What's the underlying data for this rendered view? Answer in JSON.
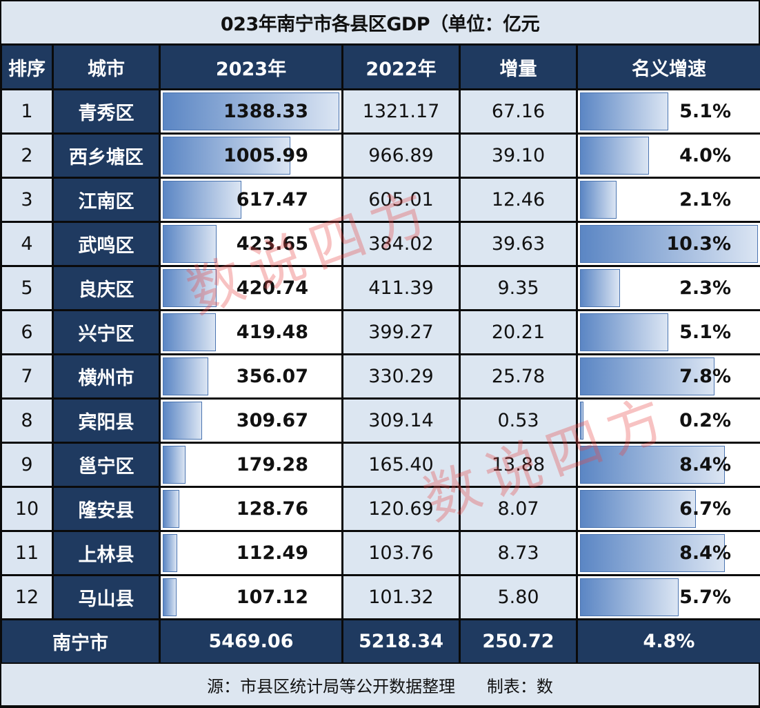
{
  "title": "023年南宁市各县区GDP（单位：亿元",
  "columns": [
    "排序",
    "城市",
    "2023年",
    "2022年",
    "增量",
    "名义增速"
  ],
  "rows": [
    {
      "rank": "1",
      "city": "青秀区",
      "gdp2023": "1388.33",
      "gdp2022": "1321.17",
      "increase": "67.16",
      "growth": "5.1%"
    },
    {
      "rank": "2",
      "city": "西乡塘区",
      "gdp2023": "1005.99",
      "gdp2022": "966.89",
      "increase": "39.10",
      "growth": "4.0%"
    },
    {
      "rank": "3",
      "city": "江南区",
      "gdp2023": "617.47",
      "gdp2022": "605.01",
      "increase": "12.46",
      "growth": "2.1%"
    },
    {
      "rank": "4",
      "city": "武鸣区",
      "gdp2023": "423.65",
      "gdp2022": "384.02",
      "increase": "39.63",
      "growth": "10.3%"
    },
    {
      "rank": "5",
      "city": "良庆区",
      "gdp2023": "420.74",
      "gdp2022": "411.39",
      "increase": "9.35",
      "growth": "2.3%"
    },
    {
      "rank": "6",
      "city": "兴宁区",
      "gdp2023": "419.48",
      "gdp2022": "399.27",
      "increase": "20.21",
      "growth": "5.1%"
    },
    {
      "rank": "7",
      "city": "横州市",
      "gdp2023": "356.07",
      "gdp2022": "330.29",
      "increase": "25.78",
      "growth": "7.8%"
    },
    {
      "rank": "8",
      "city": "宾阳县",
      "gdp2023": "309.67",
      "gdp2022": "309.14",
      "increase": "0.53",
      "growth": "0.2%"
    },
    {
      "rank": "9",
      "city": "邕宁区",
      "gdp2023": "179.28",
      "gdp2022": "165.40",
      "increase": "13.88",
      "growth": "8.4%"
    },
    {
      "rank": "10",
      "city": "隆安县",
      "gdp2023": "128.76",
      "gdp2022": "120.69",
      "increase": "8.07",
      "growth": "6.7%"
    },
    {
      "rank": "11",
      "city": "上林县",
      "gdp2023": "112.49",
      "gdp2022": "103.76",
      "increase": "8.73",
      "growth": "8.4%"
    },
    {
      "rank": "12",
      "city": "马山县",
      "gdp2023": "107.12",
      "gdp2022": "101.32",
      "increase": "5.80",
      "growth": "5.7%"
    }
  ],
  "total": {
    "city": "南宁市",
    "gdp2023": "5469.06",
    "gdp2022": "5218.34",
    "increase": "250.72",
    "growth": "4.8%"
  },
  "source": "源：市县区统计局等公开数据整理      制表：数",
  "watermark": "数说四方",
  "colors": {
    "header_bg": "#1f3a60",
    "light_cell_bg": "#dce6f1",
    "bar_start": "#5b86c4",
    "bar_end": "#dbe5f3",
    "watermark": "#e64646"
  },
  "chart_data": {
    "type": "table",
    "title": "2023年南宁市各县区GDP（单位：亿元）",
    "columns": [
      "排序",
      "城市",
      "2023年",
      "2022年",
      "增量",
      "名义增速"
    ],
    "categories": [
      "青秀区",
      "西乡塘区",
      "江南区",
      "武鸣区",
      "良庆区",
      "兴宁区",
      "横州市",
      "宾阳县",
      "邕宁区",
      "隆安县",
      "上林县",
      "马山县"
    ],
    "series": [
      {
        "name": "2023年",
        "values": [
          1388.33,
          1005.99,
          617.47,
          423.65,
          420.74,
          419.48,
          356.07,
          309.67,
          179.28,
          128.76,
          112.49,
          107.12
        ],
        "data_bars": true
      },
      {
        "name": "2022年",
        "values": [
          1321.17,
          966.89,
          605.01,
          384.02,
          411.39,
          399.27,
          330.29,
          309.14,
          165.4,
          120.69,
          103.76,
          101.32
        ]
      },
      {
        "name": "增量",
        "values": [
          67.16,
          39.1,
          12.46,
          39.63,
          9.35,
          20.21,
          25.78,
          0.53,
          13.88,
          8.07,
          8.73,
          5.8
        ]
      },
      {
        "name": "名义增速(%)",
        "values": [
          5.1,
          4.0,
          2.1,
          10.3,
          2.3,
          5.1,
          7.8,
          0.2,
          8.4,
          6.7,
          8.4,
          5.7
        ],
        "data_bars": true
      }
    ],
    "total": {
      "name": "南宁市",
      "2023年": 5469.06,
      "2022年": 5218.34,
      "增量": 250.72,
      "名义增速(%)": 4.8
    },
    "footnote": "市县区统计局等公开数据整理  制表：数说四方"
  }
}
